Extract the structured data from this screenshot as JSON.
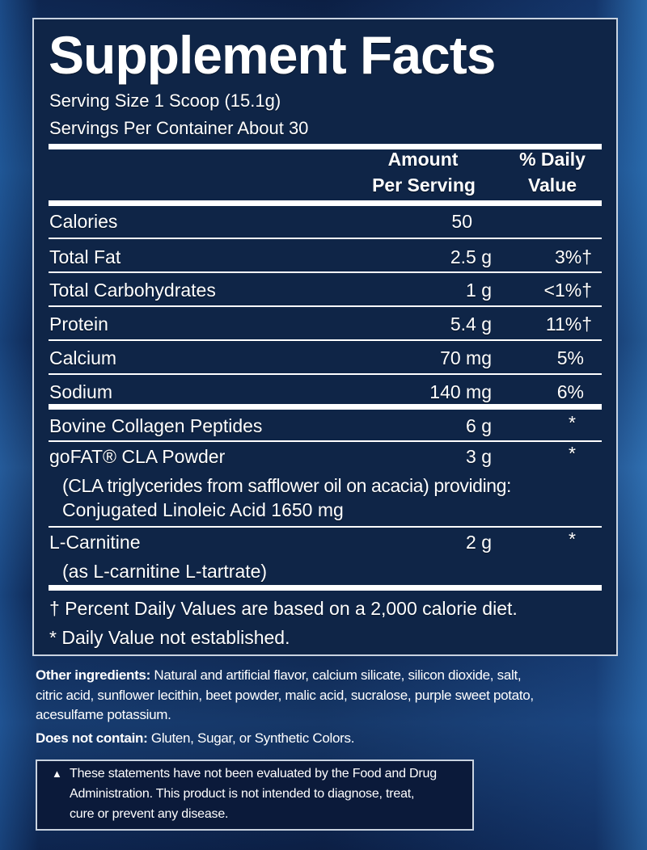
{
  "title": "Supplement Facts",
  "serving_size": "Serving Size 1 Scoop (15.1g)",
  "servings_per_container": "Servings Per Container About 30",
  "headers": {
    "amount_1": "Amount",
    "amount_2": "Per Serving",
    "dv_1": "% Daily",
    "dv_2": "Value"
  },
  "rows": [
    {
      "name": "Calories",
      "amount": "50",
      "dv": ""
    },
    {
      "name": "Total Fat",
      "amount": "2.5 g",
      "dv": "3%†"
    },
    {
      "name": "Total Carbohydrates",
      "amount": "1 g",
      "dv": "<1%†"
    },
    {
      "name": "Protein",
      "amount": "5.4 g",
      "dv": "11%†"
    },
    {
      "name": "Calcium",
      "amount": "70 mg",
      "dv": "5%"
    },
    {
      "name": "Sodium",
      "amount": "140 mg",
      "dv": "6%"
    },
    {
      "name": "Bovine Collagen Peptides",
      "amount": "6 g",
      "dv": "*"
    },
    {
      "name": "goFAT® CLA Powder",
      "amount": "3 g",
      "dv": "*",
      "detail_1": "(CLA triglycerides from safflower oil on acacia) providing:",
      "detail_2": "Conjugated Linoleic Acid 1650 mg"
    },
    {
      "name": "L-Carnitine",
      "amount": "2 g",
      "dv": "*",
      "detail_1": "(as L-carnitine L-tartrate)"
    }
  ],
  "footnotes": [
    "† Percent Daily Values are based on a 2,000 calorie diet.",
    "* Daily Value not established."
  ],
  "other_ingredients": {
    "label": "Other ingredients:",
    "line_1": " Natural and artificial flavor, calcium silicate, silicon dioxide, salt,",
    "line_2": "citric acid, sunflower lecithin, beet powder, malic acid, sucralose, purple sweet potato,",
    "line_3": "acesulfame potassium."
  },
  "does_not_contain": {
    "label": "Does not contain:",
    "text": " Gluten, Sugar, or Synthetic Colors."
  },
  "disclaimer": {
    "symbol": "▲",
    "line_1": "These statements have not been evaluated by the Food and Drug",
    "line_2": "Administration. This product is not intended to diagnose, treat,",
    "line_3": "cure or prevent any disease."
  }
}
